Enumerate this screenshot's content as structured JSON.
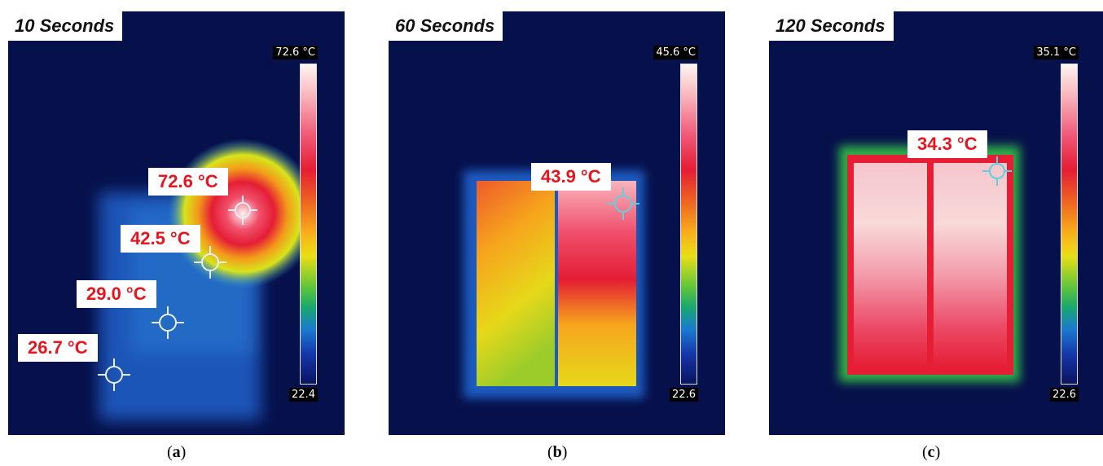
{
  "panels": [
    {
      "title": "10 Seconds",
      "scale_max": "72.6 °C",
      "scale_min": "22.4",
      "caption_letter": "a",
      "labels": [
        "72.6 °C",
        "42.5 °C",
        "29.0 °C",
        "26.7 °C"
      ]
    },
    {
      "title": "60 Seconds",
      "scale_max": "45.6 °C",
      "scale_min": "22.6",
      "caption_letter": "b",
      "labels": [
        "43.9 °C"
      ]
    },
    {
      "title": "120 Seconds",
      "scale_max": "35.1 °C",
      "scale_min": "22.6",
      "caption_letter": "c",
      "labels": [
        "34.3 °C"
      ]
    }
  ],
  "colors": {
    "background": "#06104a",
    "label_text": "#e8141e",
    "scale_top": "#fff5f2",
    "scale_bottom": "#0a1460"
  }
}
